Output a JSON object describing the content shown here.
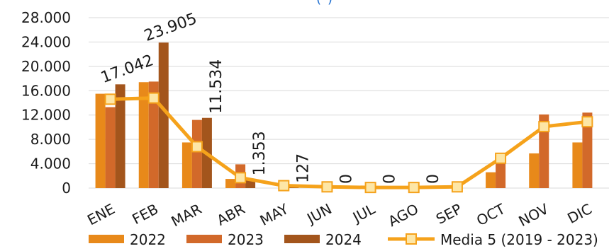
{
  "chart_data": {
    "type": "bar",
    "title_fragment": "(*)",
    "categories": [
      "ENE",
      "FEB",
      "MAR",
      "ABR",
      "MAY",
      "JUN",
      "JUL",
      "AGO",
      "SEP",
      "OCT",
      "NOV",
      "DIC"
    ],
    "series": [
      {
        "name": "2022",
        "type": "bar",
        "color": "#e8891a",
        "values": [
          15500,
          17400,
          7500,
          1500,
          0,
          0,
          0,
          0,
          0,
          2600,
          5700,
          7500
        ]
      },
      {
        "name": "2023",
        "type": "bar",
        "color": "#d2692a",
        "values": [
          13300,
          17500,
          11200,
          3900,
          0,
          0,
          0,
          0,
          0,
          5500,
          12100,
          12400
        ]
      },
      {
        "name": "2024",
        "type": "bar",
        "color": "#a3551c",
        "values": [
          17042,
          23905,
          11534,
          1353,
          127,
          0,
          0,
          0,
          0,
          null,
          null,
          null
        ]
      },
      {
        "name": "Media 5 (2019 - 2023)",
        "type": "line",
        "color": "#f5a21b",
        "values": [
          14600,
          14800,
          6800,
          1700,
          400,
          200,
          100,
          100,
          200,
          4900,
          10100,
          10900
        ]
      }
    ],
    "data_labels": [
      "17.042",
      "23.905",
      "11.534",
      "1.353",
      "127",
      "0",
      "0",
      "0"
    ],
    "yticks": [
      "0",
      "4.000",
      "8.000",
      "12.000",
      "16.000",
      "20.000",
      "24.000",
      "28.000"
    ],
    "ylim": [
      0,
      28000
    ],
    "grid": true,
    "legend_position": "bottom"
  }
}
